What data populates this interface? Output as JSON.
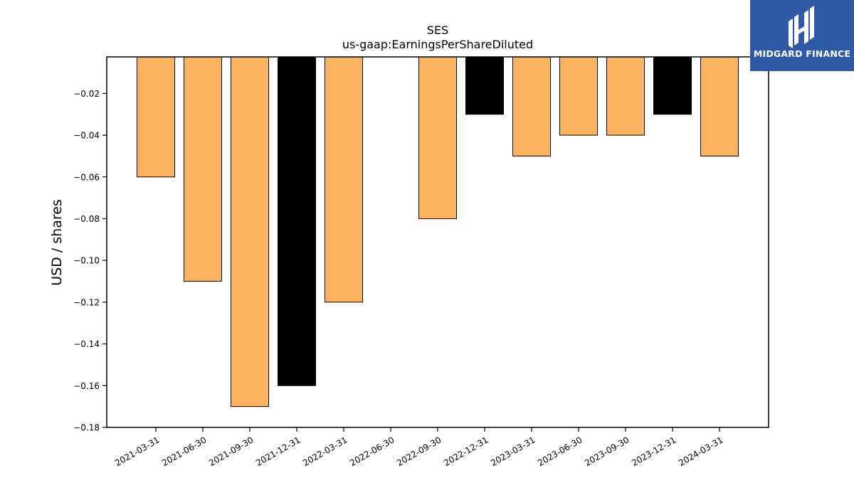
{
  "brand": {
    "name": "MIDGARD FINANCE",
    "bg_color": "#2e5aa6"
  },
  "chart_data": {
    "type": "bar",
    "title": "SES",
    "subtitle": "us-gaap:EarningsPerShareDiluted",
    "xlabel": "",
    "ylabel": "USD / shares",
    "categories": [
      "2021-03-31",
      "2021-06-30",
      "2021-09-30",
      "2021-12-31",
      "2022-03-31",
      "2022-06-30",
      "2022-09-30",
      "2022-12-31",
      "2023-03-31",
      "2023-06-30",
      "2023-09-30",
      "2023-12-31",
      "2024-03-31"
    ],
    "values": [
      -0.06,
      -0.11,
      -0.17,
      -0.16,
      -0.12,
      null,
      -0.08,
      -0.03,
      -0.05,
      -0.04,
      -0.04,
      -0.03,
      -0.05
    ],
    "bar_colors": [
      "#fbb360",
      "#fbb360",
      "#fbb360",
      "#000000",
      "#fbb360",
      "#fbb360",
      "#fbb360",
      "#000000",
      "#fbb360",
      "#fbb360",
      "#fbb360",
      "#000000",
      "#fbb360"
    ],
    "ylim": [
      -0.18,
      -0.0025
    ],
    "yticks": [
      -0.02,
      -0.04,
      -0.06,
      -0.08,
      -0.1,
      -0.12,
      -0.14,
      -0.16,
      -0.18
    ],
    "ytick_labels": [
      "−0.02",
      "−0.04",
      "−0.06",
      "−0.08",
      "−0.10",
      "−0.12",
      "−0.14",
      "−0.16",
      "−0.18"
    ],
    "grid": false,
    "legend": "none"
  }
}
